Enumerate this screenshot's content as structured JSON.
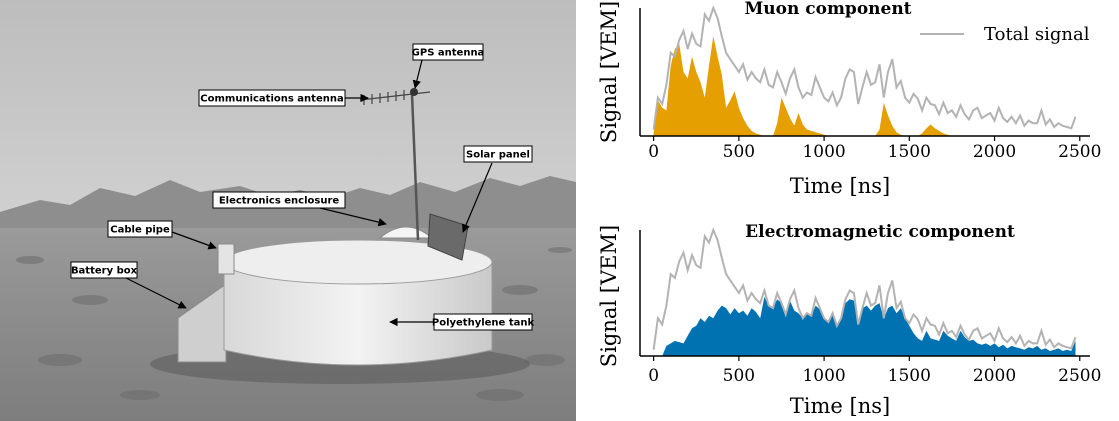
{
  "photo": {
    "labels": {
      "gps_antenna": "GPS antenna",
      "communications_antenna": "Communications antenna",
      "solar_panel": "Solar panel",
      "electronics_enclosure": "Electronics enclosure",
      "cable_pipe": "Cable pipe",
      "battery_box": "Battery box",
      "polyethylene_tank": "Polyethylene tank"
    }
  },
  "colors": {
    "total_signal": "#b3b3b3",
    "muon_fill": "#e69f00",
    "em_fill": "#0072b2"
  },
  "chart_data": [
    {
      "type": "area",
      "title": "Muon component",
      "xlabel": "Time [ns]",
      "ylabel": "Signal [VEM]",
      "xlim": [
        -80,
        2560
      ],
      "ylim": [
        0,
        1
      ],
      "xticks": [
        0,
        500,
        1000,
        1500,
        2000,
        2500
      ],
      "legend": "top-right",
      "series": [
        {
          "name": "Total signal",
          "kind": "line",
          "x": [
            0,
            25,
            50,
            75,
            100,
            125,
            150,
            175,
            200,
            225,
            250,
            275,
            300,
            325,
            350,
            375,
            400,
            425,
            450,
            475,
            500,
            525,
            550,
            575,
            600,
            625,
            650,
            675,
            700,
            725,
            750,
            775,
            800,
            825,
            850,
            875,
            900,
            925,
            950,
            975,
            1000,
            1025,
            1050,
            1075,
            1100,
            1125,
            1150,
            1175,
            1200,
            1225,
            1250,
            1275,
            1300,
            1325,
            1350,
            1375,
            1400,
            1425,
            1450,
            1475,
            1500,
            1525,
            1550,
            1575,
            1600,
            1625,
            1650,
            1675,
            1700,
            1725,
            1750,
            1775,
            1800,
            1825,
            1850,
            1875,
            1900,
            1925,
            1950,
            1975,
            2000,
            2025,
            2050,
            2075,
            2100,
            2125,
            2150,
            2175,
            2200,
            2225,
            2250,
            2275,
            2300,
            2325,
            2350,
            2375,
            2400,
            2425,
            2450,
            2475
          ],
          "y": [
            0.05,
            0.3,
            0.25,
            0.4,
            0.65,
            0.62,
            0.75,
            0.82,
            0.68,
            0.8,
            0.72,
            0.7,
            0.95,
            0.9,
            1.0,
            0.92,
            0.78,
            0.65,
            0.6,
            0.55,
            0.5,
            0.56,
            0.44,
            0.5,
            0.45,
            0.42,
            0.52,
            0.4,
            0.38,
            0.5,
            0.42,
            0.33,
            0.45,
            0.52,
            0.38,
            0.3,
            0.34,
            0.32,
            0.46,
            0.38,
            0.3,
            0.27,
            0.34,
            0.24,
            0.3,
            0.45,
            0.52,
            0.5,
            0.25,
            0.38,
            0.5,
            0.4,
            0.42,
            0.56,
            0.3,
            0.5,
            0.6,
            0.38,
            0.43,
            0.3,
            0.26,
            0.33,
            0.29,
            0.2,
            0.3,
            0.25,
            0.24,
            0.17,
            0.26,
            0.18,
            0.2,
            0.15,
            0.24,
            0.17,
            0.13,
            0.2,
            0.22,
            0.14,
            0.16,
            0.18,
            0.12,
            0.22,
            0.14,
            0.11,
            0.15,
            0.1,
            0.16,
            0.08,
            0.12,
            0.1,
            0.1,
            0.2,
            0.09,
            0.13,
            0.07,
            0.1,
            0.08,
            0.07,
            0.06,
            0.15
          ]
        },
        {
          "name": "Muon component",
          "kind": "filled",
          "x": [
            0,
            25,
            50,
            75,
            100,
            125,
            150,
            175,
            200,
            225,
            250,
            275,
            300,
            325,
            350,
            375,
            400,
            425,
            450,
            475,
            500,
            525,
            550,
            575,
            600,
            625,
            650,
            675,
            700,
            725,
            750,
            775,
            800,
            825,
            850,
            875,
            900,
            925,
            950,
            975,
            1000,
            1025,
            1050,
            1075,
            1100,
            1125,
            1150,
            1175,
            1200,
            1225,
            1250,
            1275,
            1300,
            1325,
            1350,
            1375,
            1400,
            1425,
            1450,
            1475,
            1500,
            1525,
            1550,
            1575,
            1600,
            1625,
            1650,
            1675,
            1700,
            1725,
            1750,
            1775,
            1800,
            1825,
            1850
          ],
          "y": [
            0.02,
            0.28,
            0.22,
            0.2,
            0.55,
            0.68,
            0.72,
            0.5,
            0.45,
            0.62,
            0.5,
            0.42,
            0.3,
            0.55,
            0.78,
            0.62,
            0.48,
            0.22,
            0.28,
            0.35,
            0.22,
            0.14,
            0.08,
            0.04,
            0.02,
            0.01,
            0,
            0,
            0,
            0.1,
            0.3,
            0.22,
            0.14,
            0.08,
            0.18,
            0.09,
            0.05,
            0.04,
            0.03,
            0.02,
            0.01,
            0,
            0,
            0,
            0,
            0,
            0,
            0,
            0,
            0,
            0,
            0,
            0,
            0.05,
            0.26,
            0.16,
            0.08,
            0.03,
            0.01,
            0,
            0,
            0,
            0,
            0.02,
            0.06,
            0.09,
            0.06,
            0.04,
            0.02,
            0.01,
            0,
            0,
            0,
            0,
            0
          ]
        }
      ]
    },
    {
      "type": "area",
      "title": "Electromagnetic component",
      "xlabel": "Time [ns]",
      "ylabel": "Signal [VEM]",
      "xlim": [
        -80,
        2560
      ],
      "ylim": [
        0,
        1
      ],
      "xticks": [
        0,
        500,
        1000,
        1500,
        2000,
        2500
      ],
      "series": [
        {
          "name": "Total signal",
          "kind": "line",
          "x": [
            0,
            25,
            50,
            75,
            100,
            125,
            150,
            175,
            200,
            225,
            250,
            275,
            300,
            325,
            350,
            375,
            400,
            425,
            450,
            475,
            500,
            525,
            550,
            575,
            600,
            625,
            650,
            675,
            700,
            725,
            750,
            775,
            800,
            825,
            850,
            875,
            900,
            925,
            950,
            975,
            1000,
            1025,
            1050,
            1075,
            1100,
            1125,
            1150,
            1175,
            1200,
            1225,
            1250,
            1275,
            1300,
            1325,
            1350,
            1375,
            1400,
            1425,
            1450,
            1475,
            1500,
            1525,
            1550,
            1575,
            1600,
            1625,
            1650,
            1675,
            1700,
            1725,
            1750,
            1775,
            1800,
            1825,
            1850,
            1875,
            1900,
            1925,
            1950,
            1975,
            2000,
            2025,
            2050,
            2075,
            2100,
            2125,
            2150,
            2175,
            2200,
            2225,
            2250,
            2275,
            2300,
            2325,
            2350,
            2375,
            2400,
            2425,
            2450,
            2475
          ],
          "y": [
            0.05,
            0.3,
            0.25,
            0.4,
            0.65,
            0.62,
            0.75,
            0.82,
            0.68,
            0.8,
            0.72,
            0.7,
            0.95,
            0.9,
            1.0,
            0.92,
            0.78,
            0.65,
            0.6,
            0.55,
            0.5,
            0.56,
            0.44,
            0.5,
            0.45,
            0.42,
            0.52,
            0.4,
            0.38,
            0.5,
            0.42,
            0.33,
            0.45,
            0.52,
            0.38,
            0.3,
            0.34,
            0.32,
            0.46,
            0.38,
            0.3,
            0.27,
            0.34,
            0.24,
            0.3,
            0.45,
            0.52,
            0.5,
            0.25,
            0.38,
            0.5,
            0.4,
            0.42,
            0.56,
            0.3,
            0.5,
            0.6,
            0.38,
            0.43,
            0.3,
            0.26,
            0.33,
            0.29,
            0.2,
            0.3,
            0.25,
            0.24,
            0.17,
            0.26,
            0.18,
            0.2,
            0.15,
            0.24,
            0.17,
            0.13,
            0.2,
            0.22,
            0.14,
            0.16,
            0.18,
            0.12,
            0.22,
            0.14,
            0.11,
            0.15,
            0.1,
            0.16,
            0.08,
            0.12,
            0.1,
            0.1,
            0.2,
            0.09,
            0.13,
            0.07,
            0.1,
            0.08,
            0.07,
            0.06,
            0.15
          ]
        },
        {
          "name": "Electromagnetic component",
          "kind": "filled",
          "x": [
            50,
            75,
            100,
            125,
            150,
            175,
            200,
            225,
            250,
            275,
            300,
            325,
            350,
            375,
            400,
            425,
            450,
            475,
            500,
            525,
            550,
            575,
            600,
            625,
            650,
            675,
            700,
            725,
            750,
            775,
            800,
            825,
            850,
            875,
            900,
            925,
            950,
            975,
            1000,
            1025,
            1050,
            1075,
            1100,
            1125,
            1150,
            1175,
            1200,
            1225,
            1250,
            1275,
            1300,
            1325,
            1350,
            1375,
            1400,
            1425,
            1450,
            1475,
            1500,
            1525,
            1550,
            1575,
            1600,
            1625,
            1650,
            1675,
            1700,
            1725,
            1750,
            1775,
            1800,
            1825,
            1850,
            1875,
            1900,
            1925,
            1950,
            1975,
            2000,
            2025,
            2050,
            2075,
            2100,
            2125,
            2150,
            2175,
            2200,
            2225,
            2250,
            2275,
            2300,
            2325,
            2350,
            2375,
            2400,
            2425,
            2450,
            2475
          ],
          "y": [
            0,
            0.08,
            0.1,
            0.12,
            0.11,
            0.1,
            0.16,
            0.22,
            0.24,
            0.3,
            0.27,
            0.32,
            0.3,
            0.36,
            0.4,
            0.38,
            0.33,
            0.38,
            0.34,
            0.36,
            0.32,
            0.38,
            0.35,
            0.3,
            0.47,
            0.4,
            0.38,
            0.45,
            0.42,
            0.33,
            0.44,
            0.36,
            0.34,
            0.3,
            0.34,
            0.32,
            0.4,
            0.37,
            0.3,
            0.27,
            0.34,
            0.24,
            0.3,
            0.42,
            0.45,
            0.44,
            0.25,
            0.38,
            0.4,
            0.36,
            0.4,
            0.42,
            0.3,
            0.38,
            0.4,
            0.34,
            0.38,
            0.3,
            0.24,
            0.18,
            0.14,
            0.12,
            0.2,
            0.14,
            0.13,
            0.12,
            0.2,
            0.16,
            0.14,
            0.12,
            0.2,
            0.15,
            0.12,
            0.13,
            0.1,
            0.09,
            0.1,
            0.08,
            0.1,
            0.07,
            0.09,
            0.06,
            0.08,
            0.07,
            0.06,
            0.05,
            0.07,
            0.06,
            0.08,
            0.05,
            0.06,
            0.04,
            0.05,
            0.06,
            0.04,
            0.05,
            0.04,
            0.12
          ]
        }
      ]
    }
  ]
}
